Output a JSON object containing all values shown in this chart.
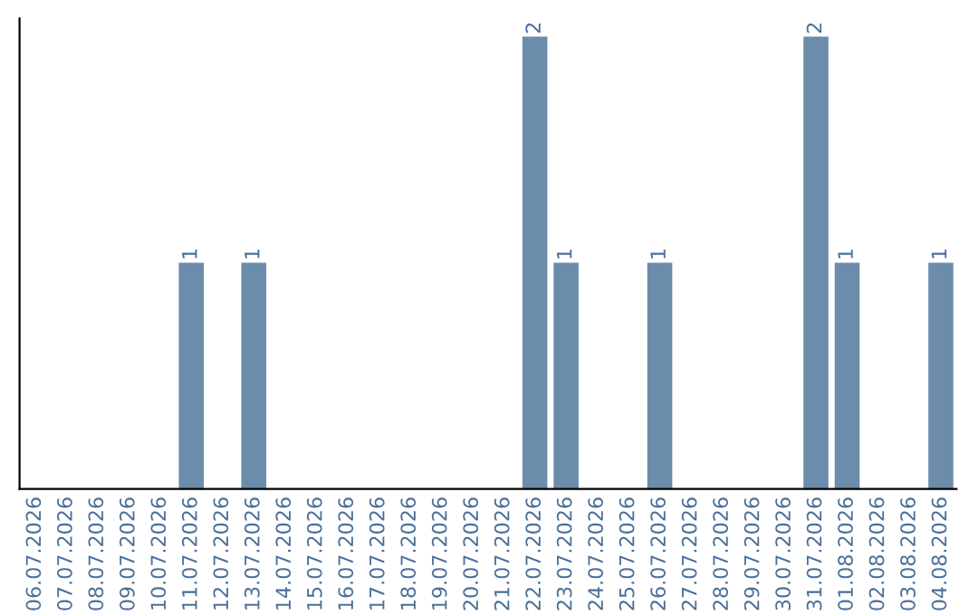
{
  "chart_data": {
    "type": "bar",
    "categories": [
      "06.07.2026",
      "07.07.2026",
      "08.07.2026",
      "09.07.2026",
      "10.07.2026",
      "11.07.2026",
      "12.07.2026",
      "13.07.2026",
      "14.07.2026",
      "15.07.2026",
      "16.07.2026",
      "17.07.2026",
      "18.07.2026",
      "19.07.2026",
      "20.07.2026",
      "21.07.2026",
      "22.07.2026",
      "23.07.2026",
      "24.07.2026",
      "25.07.2026",
      "26.07.2026",
      "27.07.2026",
      "28.07.2026",
      "29.07.2026",
      "30.07.2026",
      "31.07.2026",
      "01.08.2026",
      "02.08.2026",
      "03.08.2026",
      "04.08.2026"
    ],
    "values": [
      0,
      0,
      0,
      0,
      0,
      1,
      0,
      1,
      0,
      0,
      0,
      0,
      0,
      0,
      0,
      0,
      2,
      1,
      0,
      0,
      1,
      0,
      0,
      0,
      0,
      2,
      1,
      0,
      0,
      1
    ],
    "value_labels": [
      null,
      null,
      null,
      null,
      null,
      "1",
      null,
      "1",
      null,
      null,
      null,
      null,
      null,
      null,
      null,
      null,
      "2",
      "1",
      null,
      null,
      "1",
      null,
      null,
      null,
      null,
      "2",
      "1",
      null,
      null,
      "1"
    ],
    "color": "#6b8caa",
    "grid": false,
    "legend": false
  }
}
